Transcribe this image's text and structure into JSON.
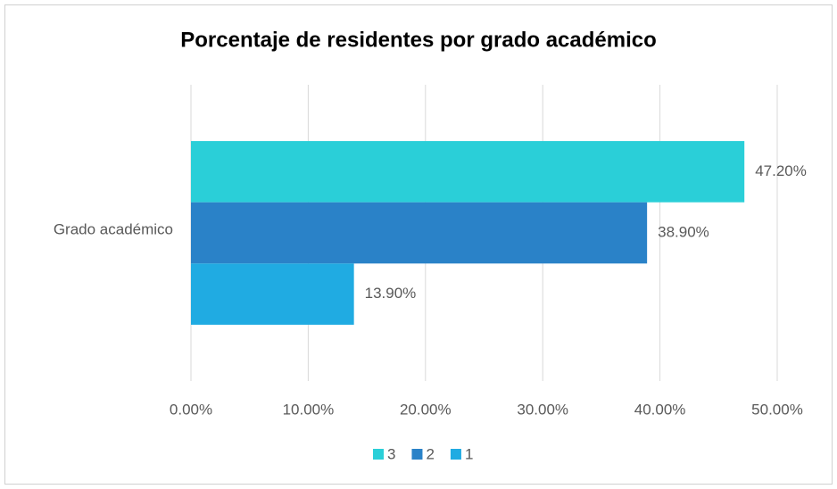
{
  "chart_data": {
    "type": "bar",
    "orientation": "horizontal",
    "title": "Porcentaje de residentes por grado académico",
    "categories": [
      "Grado académico"
    ],
    "series": [
      {
        "name": "3",
        "color": "#2acfd8",
        "values": [
          47.2
        ],
        "value_labels": [
          "47.20%"
        ]
      },
      {
        "name": "2",
        "color": "#2a82c8",
        "values": [
          38.9
        ],
        "value_labels": [
          "38.90%"
        ]
      },
      {
        "name": "1",
        "color": "#20abe2",
        "values": [
          13.9
        ],
        "value_labels": [
          "13.90%"
        ]
      }
    ],
    "xlim": [
      0,
      50
    ],
    "xticks": [
      {
        "value": 0,
        "label": "0.00%"
      },
      {
        "value": 10,
        "label": "10.00%"
      },
      {
        "value": 20,
        "label": "20.00%"
      },
      {
        "value": 30,
        "label": "30.00%"
      },
      {
        "value": 40,
        "label": "40.00%"
      },
      {
        "value": 50,
        "label": "50.00%"
      }
    ],
    "grid": true,
    "legend": "bottom"
  }
}
